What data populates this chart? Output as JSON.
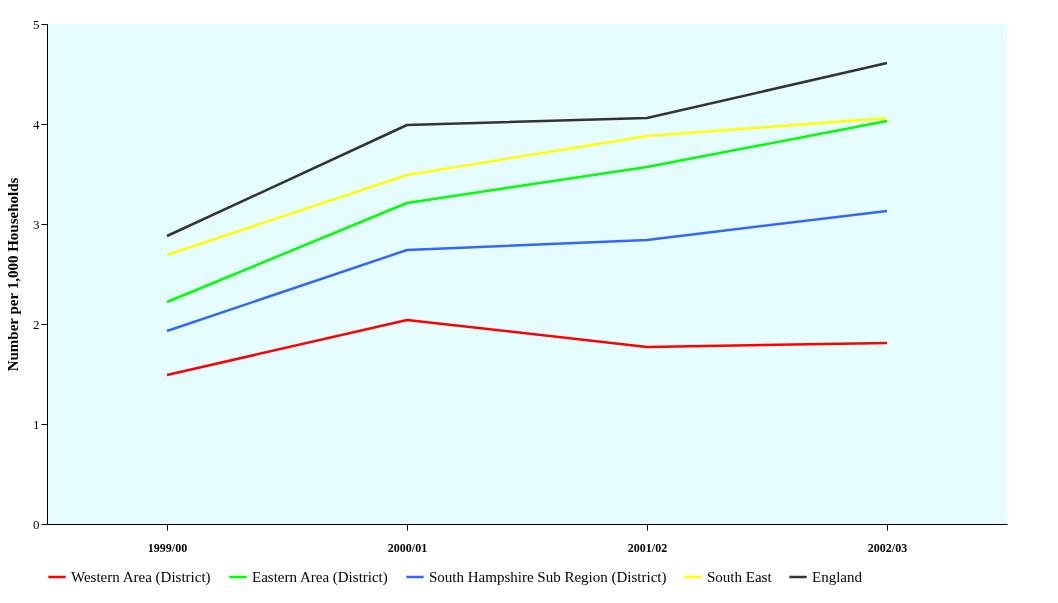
{
  "chart_data": {
    "type": "line",
    "ylabel": "Number per 1,000 Households",
    "categories": [
      "1999/00",
      "2000/01",
      "2001/02",
      "2002/03"
    ],
    "ylim": [
      0,
      5
    ],
    "yticks": [
      0,
      1,
      2,
      3,
      4,
      5
    ],
    "grid": false,
    "legend": "bottom",
    "marker": "none",
    "series": [
      {
        "name": "Western Area (District)",
        "color": "#ff0000",
        "values": [
          1.49,
          2.04,
          1.77,
          1.81
        ]
      },
      {
        "name": "Eastern Area (District)",
        "color": "#00ff00",
        "values": [
          2.22,
          3.21,
          3.57,
          4.03
        ]
      },
      {
        "name": "South Hampshire Sub Region (District)",
        "color": "#3366ff",
        "values": [
          1.93,
          2.74,
          2.84,
          3.13
        ]
      },
      {
        "name": "South East",
        "color": "#ffff00",
        "values": [
          2.69,
          3.49,
          3.88,
          4.06
        ]
      },
      {
        "name": "England",
        "color": "#333333",
        "values": [
          2.88,
          3.99,
          4.06,
          4.61
        ]
      }
    ]
  }
}
